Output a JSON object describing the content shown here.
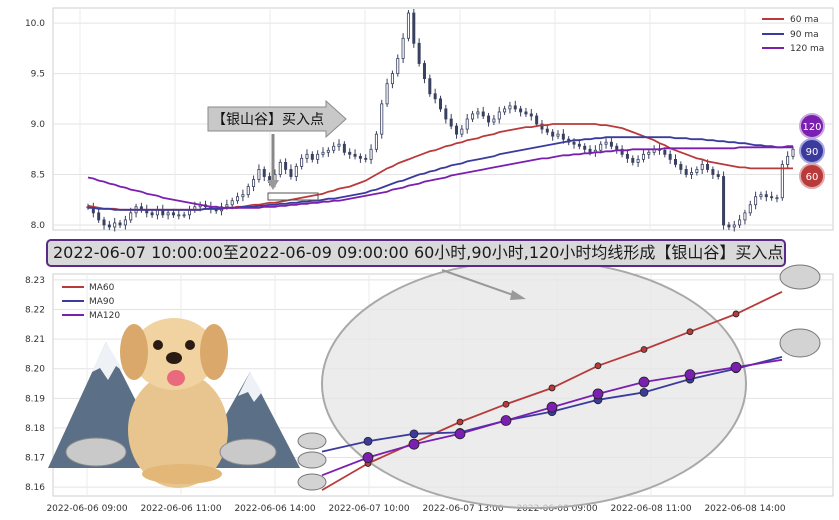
{
  "annotation": {
    "callout": "【银山谷】买入点",
    "banner": "2022-06-07 10:00:00至2022-06-09 09:00:00 60小时,90小时,120小时均线形成【银山谷】买入点"
  },
  "badges": [
    "120",
    "90",
    "60"
  ],
  "colors": {
    "ma60": "#b83a3a",
    "ma90": "#3b3b9e",
    "ma120": "#7a1fb0",
    "candle": "#3a4060"
  },
  "chart_data": [
    {
      "type": "candlestick",
      "ylim": [
        7.95,
        10.15
      ],
      "yticks": [
        "8.0",
        "8.5",
        "9.0",
        "9.5",
        "10.0"
      ],
      "legend": [
        "60 ma",
        "90 ma",
        "120 ma"
      ],
      "legend_position": "top-right",
      "grid": true,
      "close": [
        8.18,
        8.12,
        8.05,
        8.0,
        7.98,
        8.02,
        8.0,
        8.05,
        8.12,
        8.18,
        8.15,
        8.12,
        8.1,
        8.15,
        8.1,
        8.12,
        8.1,
        8.1,
        8.1,
        8.15,
        8.18,
        8.2,
        8.18,
        8.16,
        8.14,
        8.18,
        8.2,
        8.24,
        8.28,
        8.3,
        8.38,
        8.45,
        8.55,
        8.48,
        8.42,
        8.5,
        8.62,
        8.55,
        8.48,
        8.58,
        8.66,
        8.7,
        8.65,
        8.7,
        8.72,
        8.74,
        8.78,
        8.8,
        8.72,
        8.7,
        8.68,
        8.66,
        8.65,
        8.75,
        8.9,
        9.2,
        9.4,
        9.5,
        9.65,
        9.85,
        10.1,
        9.8,
        9.6,
        9.45,
        9.3,
        9.25,
        9.15,
        9.05,
        8.98,
        8.9,
        8.95,
        9.05,
        9.1,
        9.12,
        9.08,
        9.02,
        9.05,
        9.12,
        9.15,
        9.18,
        9.15,
        9.12,
        9.1,
        9.08,
        9.0,
        8.95,
        8.92,
        8.88,
        8.9,
        8.85,
        8.82,
        8.8,
        8.78,
        8.75,
        8.72,
        8.74,
        8.8,
        8.82,
        8.78,
        8.75,
        8.7,
        8.66,
        8.62,
        8.65,
        8.7,
        8.72,
        8.75,
        8.74,
        8.7,
        8.65,
        8.6,
        8.55,
        8.5,
        8.52,
        8.55,
        8.6,
        8.55,
        8.5,
        8.48,
        8.0,
        7.98,
        8.0,
        8.05,
        8.12,
        8.2,
        8.28,
        8.3,
        8.28,
        8.27,
        8.27,
        8.6,
        8.68,
        8.75
      ],
      "ma60": [
        8.19,
        8.18,
        8.17,
        8.16,
        8.16,
        8.16,
        8.15,
        8.15,
        8.15,
        8.15,
        8.15,
        8.15,
        8.15,
        8.15,
        8.15,
        8.15,
        8.15,
        8.15,
        8.15,
        8.15,
        8.15,
        8.15,
        8.16,
        8.16,
        8.16,
        8.16,
        8.17,
        8.17,
        8.18,
        8.18,
        8.19,
        8.2,
        8.2,
        8.21,
        8.22,
        8.22,
        8.23,
        8.24,
        8.25,
        8.26,
        8.27,
        8.28,
        8.29,
        8.3,
        8.31,
        8.33,
        8.34,
        8.36,
        8.37,
        8.38,
        8.4,
        8.42,
        8.44,
        8.47,
        8.5,
        8.53,
        8.56,
        8.58,
        8.61,
        8.63,
        8.65,
        8.67,
        8.69,
        8.71,
        8.73,
        8.74,
        8.76,
        8.78,
        8.79,
        8.81,
        8.82,
        8.84,
        8.85,
        8.86,
        8.88,
        8.89,
        8.9,
        8.92,
        8.93,
        8.94,
        8.95,
        8.96,
        8.97,
        8.97,
        8.98,
        8.99,
        8.99,
        9.0,
        9.0,
        9.0,
        9.0,
        9.0,
        9.0,
        9.0,
        9.0,
        9.0,
        8.99,
        8.99,
        8.98,
        8.97,
        8.96,
        8.94,
        8.92,
        8.9,
        8.88,
        8.86,
        8.84,
        8.81,
        8.79,
        8.76,
        8.74,
        8.72,
        8.7,
        8.68,
        8.66,
        8.65,
        8.63,
        8.62,
        8.61,
        8.6,
        8.59,
        8.58,
        8.57,
        8.57,
        8.56,
        8.56,
        8.56,
        8.56,
        8.56,
        8.56,
        8.56,
        8.56,
        8.56
      ],
      "ma90": [
        8.17,
        8.17,
        8.16,
        8.16,
        8.16,
        8.15,
        8.15,
        8.15,
        8.15,
        8.15,
        8.15,
        8.15,
        8.15,
        8.15,
        8.15,
        8.15,
        8.15,
        8.15,
        8.15,
        8.15,
        8.15,
        8.15,
        8.16,
        8.16,
        8.16,
        8.16,
        8.17,
        8.17,
        8.17,
        8.18,
        8.18,
        8.18,
        8.19,
        8.19,
        8.2,
        8.2,
        8.21,
        8.21,
        8.22,
        8.22,
        8.23,
        8.23,
        8.24,
        8.24,
        8.25,
        8.26,
        8.26,
        8.27,
        8.28,
        8.29,
        8.3,
        8.31,
        8.32,
        8.34,
        8.35,
        8.37,
        8.39,
        8.41,
        8.43,
        8.44,
        8.46,
        8.48,
        8.5,
        8.51,
        8.53,
        8.54,
        8.56,
        8.57,
        8.59,
        8.6,
        8.61,
        8.63,
        8.64,
        8.65,
        8.66,
        8.67,
        8.68,
        8.7,
        8.71,
        8.72,
        8.73,
        8.74,
        8.75,
        8.76,
        8.77,
        8.78,
        8.79,
        8.8,
        8.81,
        8.82,
        8.83,
        8.84,
        8.84,
        8.85,
        8.85,
        8.86,
        8.86,
        8.87,
        8.87,
        8.87,
        8.87,
        8.87,
        8.87,
        8.87,
        8.87,
        8.87,
        8.87,
        8.87,
        8.87,
        8.87,
        8.86,
        8.86,
        8.86,
        8.85,
        8.85,
        8.85,
        8.84,
        8.84,
        8.83,
        8.83,
        8.82,
        8.82,
        8.81,
        8.81,
        8.8,
        8.79,
        8.79,
        8.78,
        8.78,
        8.77,
        8.77,
        8.77,
        8.77
      ],
      "ma120": [
        8.47,
        8.46,
        8.44,
        8.43,
        8.41,
        8.4,
        8.38,
        8.37,
        8.35,
        8.34,
        8.33,
        8.31,
        8.3,
        8.29,
        8.27,
        8.26,
        8.25,
        8.24,
        8.23,
        8.22,
        8.21,
        8.2,
        8.19,
        8.18,
        8.18,
        8.17,
        8.17,
        8.17,
        8.17,
        8.17,
        8.17,
        8.17,
        8.17,
        8.18,
        8.18,
        8.18,
        8.19,
        8.19,
        8.2,
        8.2,
        8.21,
        8.21,
        8.22,
        8.22,
        8.23,
        8.23,
        8.24,
        8.24,
        8.25,
        8.26,
        8.27,
        8.28,
        8.29,
        8.3,
        8.31,
        8.32,
        8.33,
        8.35,
        8.36,
        8.37,
        8.39,
        8.4,
        8.41,
        8.43,
        8.44,
        8.45,
        8.46,
        8.47,
        8.49,
        8.5,
        8.51,
        8.52,
        8.53,
        8.54,
        8.55,
        8.56,
        8.57,
        8.58,
        8.59,
        8.6,
        8.61,
        8.62,
        8.63,
        8.64,
        8.65,
        8.66,
        8.66,
        8.67,
        8.68,
        8.69,
        8.69,
        8.7,
        8.7,
        8.71,
        8.71,
        8.72,
        8.72,
        8.73,
        8.73,
        8.74,
        8.74,
        8.74,
        8.75,
        8.75,
        8.75,
        8.75,
        8.75,
        8.75,
        8.76,
        8.76,
        8.76,
        8.76,
        8.76,
        8.76,
        8.76,
        8.76,
        8.76,
        8.76,
        8.76,
        8.76,
        8.76,
        8.76,
        8.77,
        8.77,
        8.77,
        8.77,
        8.77,
        8.77,
        8.77,
        8.77,
        8.77,
        8.78,
        8.78
      ]
    },
    {
      "type": "line",
      "ylim": [
        8.157,
        8.232
      ],
      "yticks": [
        "8.16",
        "8.17",
        "8.18",
        "8.19",
        "8.20",
        "8.21",
        "8.22",
        "8.23"
      ],
      "xticks": [
        "2022-06-06 09:00",
        "2022-06-06 11:00",
        "2022-06-06 14:00",
        "2022-06-07 10:00",
        "2022-06-07 13:00",
        "2022-06-08 09:00",
        "2022-06-08 11:00",
        "2022-06-08 14:00"
      ],
      "legend": [
        "MA60",
        "MA90",
        "MA120"
      ],
      "legend_position": "top-left",
      "grid": true,
      "series": [
        {
          "name": "MA60",
          "values": [
            8.159,
            8.168,
            8.175,
            8.182,
            8.188,
            8.1935,
            8.201,
            8.2065,
            8.2125,
            8.2185,
            8.226
          ]
        },
        {
          "name": "MA90",
          "values": [
            8.172,
            8.1755,
            8.178,
            8.1785,
            8.1825,
            8.1855,
            8.1895,
            8.192,
            8.1965,
            8.2,
            8.204
          ]
        },
        {
          "name": "MA120",
          "values": [
            8.164,
            8.17,
            8.1745,
            8.178,
            8.1825,
            8.187,
            8.1915,
            8.1955,
            8.198,
            8.2005,
            8.203
          ]
        }
      ]
    }
  ]
}
